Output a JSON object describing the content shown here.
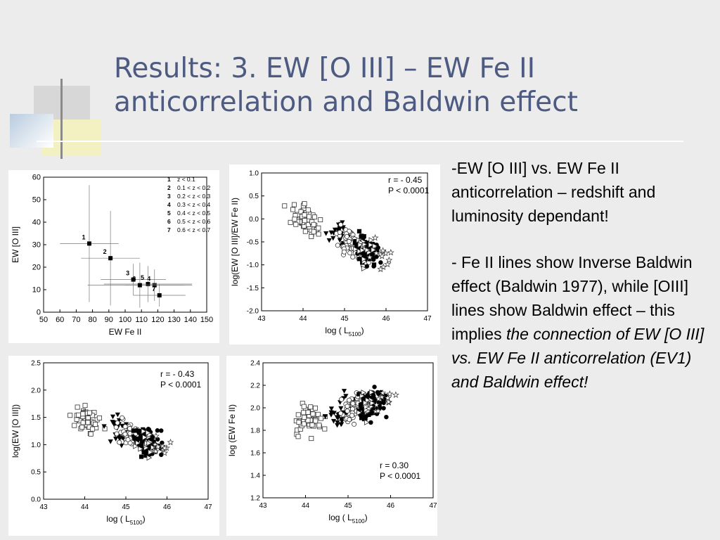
{
  "slide": {
    "title": "Results: 3. EW [O III] – EW Fe II anticorrelation and Baldwin effect",
    "paragraph1": "-EW [O III] vs. EW Fe II anticorrelation – redshift and luminosity dependant!",
    "paragraph2_plain": "- Fe II lines show Inverse Baldwin effect (Baldwin 1977), while [OIII] lines show Baldwin effect – this implies ",
    "paragraph2_italic": "the connection of EW [O III] vs. EW Fe II anticorrelation (EV1) and Baldwin effect!"
  },
  "chart_data": [
    {
      "type": "scatter",
      "title": "",
      "xlabel": "EW Fe II",
      "ylabel": "EW [O III]",
      "xlim": [
        50,
        150
      ],
      "ylim": [
        0,
        60
      ],
      "xticks": [
        50,
        60,
        70,
        80,
        90,
        100,
        110,
        120,
        130,
        140,
        150
      ],
      "yticks": [
        0,
        10,
        20,
        30,
        40,
        50,
        60
      ],
      "legend": [
        {
          "id": "1",
          "text": "z < 0.1"
        },
        {
          "id": "2",
          "text": "0.1 < z < 0.2"
        },
        {
          "id": "3",
          "text": "0.2 < z < 0.3"
        },
        {
          "id": "4",
          "text": "0.3 < z < 0.4"
        },
        {
          "id": "5",
          "text": "0.4 < z < 0.5"
        },
        {
          "id": "6",
          "text": "0.5 < z < 0.6"
        },
        {
          "id": "7",
          "text": "0.6 < z < 0.7"
        }
      ],
      "points": [
        {
          "label": "1",
          "x": 78,
          "y": 30.5,
          "xerr": 18,
          "yerr": 26
        },
        {
          "label": "2",
          "x": 91,
          "y": 24,
          "xerr": 18,
          "yerr": 21
        },
        {
          "label": "3",
          "x": 105,
          "y": 14.5,
          "xerr": 20,
          "yerr": 7
        },
        {
          "label": "4",
          "x": 118,
          "y": 12,
          "xerr": 18,
          "yerr": 7
        },
        {
          "label": "5",
          "x": 114,
          "y": 12.5,
          "xerr": 27,
          "yerr": 8
        },
        {
          "label": "6",
          "x": 109,
          "y": 12,
          "xerr": 32,
          "yerr": 10
        },
        {
          "label": "7",
          "x": 121,
          "y": 7.5,
          "xerr": 16,
          "yerr": 5
        }
      ]
    },
    {
      "type": "scatter",
      "title": "",
      "xlabel": "log ( L5100)",
      "ylabel": "log(EW [O III]/EW Fe II)",
      "xlim": [
        43,
        47
      ],
      "ylim": [
        -2.0,
        1.0
      ],
      "xticks": [
        43,
        44,
        45,
        46,
        47
      ],
      "yticks": [
        -2.0,
        -1.5,
        -1.0,
        -0.5,
        0.0,
        0.5,
        1.0
      ],
      "annotation": [
        "r = - 0.45",
        "P < 0.0001"
      ]
    },
    {
      "type": "scatter",
      "title": "",
      "xlabel": "log ( L5100)",
      "ylabel": "log(EW [O III])",
      "xlim": [
        43,
        47
      ],
      "ylim": [
        0.0,
        2.5
      ],
      "xticks": [
        43,
        44,
        45,
        46,
        47
      ],
      "yticks": [
        0.0,
        0.5,
        1.0,
        1.5,
        2.0,
        2.5
      ],
      "annotation": [
        "r = - 0.43",
        "P < 0.0001"
      ]
    },
    {
      "type": "scatter",
      "title": "",
      "xlabel": "log ( L5100)",
      "ylabel": "log (EW Fe II)",
      "xlim": [
        43,
        47
      ],
      "ylim": [
        1.2,
        2.4
      ],
      "xticks": [
        43,
        44,
        45,
        46,
        47
      ],
      "yticks": [
        1.2,
        1.4,
        1.6,
        1.8,
        2.0,
        2.2,
        2.4
      ],
      "annotation": [
        "r = 0.30",
        "P < 0.0001"
      ]
    }
  ]
}
